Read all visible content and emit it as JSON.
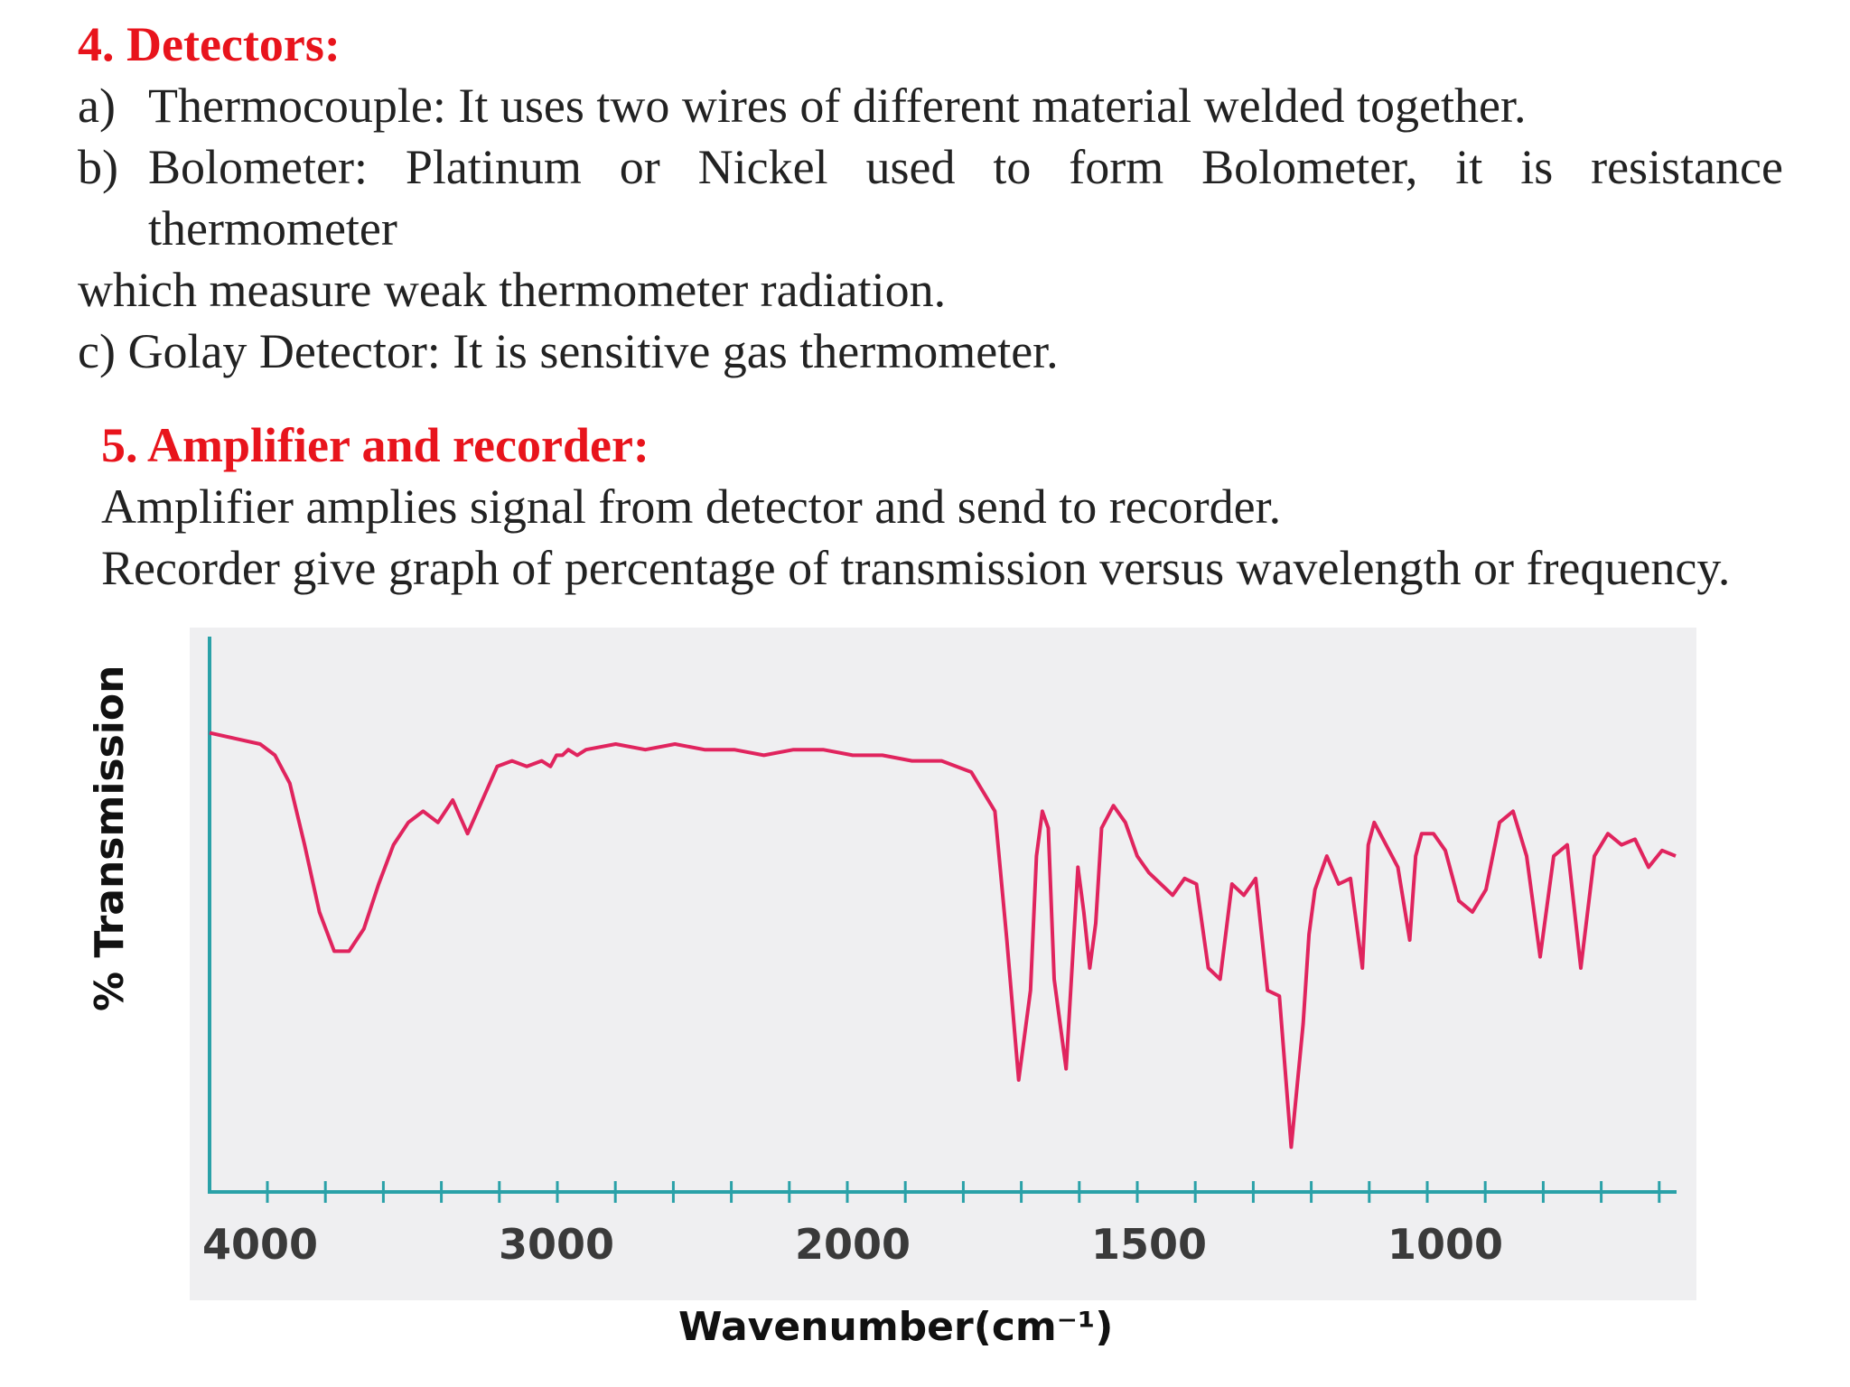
{
  "section4": {
    "heading": "4. Detectors:",
    "heading_color": "#e8141c",
    "items": [
      {
        "marker": "a)",
        "text": "Thermocouple: It uses two wires of different material welded together."
      },
      {
        "marker": "b)",
        "text_line1": "Bolometer: Platinum or Nickel used to form Bolometer, it is resistance",
        "text_line2": "thermometer"
      }
    ],
    "continuation": "which measure weak thermometer radiation.",
    "item_c": "c) Golay Detector: It is sensitive gas thermometer."
  },
  "section5": {
    "heading": "5. Amplifier and recorder:",
    "heading_color": "#e8141c",
    "line1": "Amplifier amplies signal from detector and send to recorder.",
    "line2": "Recorder give graph of percentage of transmission versus wavelength or frequency."
  },
  "chart_data": {
    "type": "line",
    "title": "",
    "xlabel": "Wavenumber(cm⁻¹)",
    "ylabel": "% Transmission",
    "x_reversed": true,
    "x_ticks": [
      4000,
      3000,
      2000,
      1500,
      1000
    ],
    "line_color": "#e0245e",
    "axis_color": "#2aa1a8",
    "series": [
      {
        "x": [
          4200,
          4100,
          4000,
          3950,
          3900,
          3850,
          3800,
          3750,
          3700,
          3650,
          3600,
          3550,
          3500,
          3450,
          3400,
          3350,
          3300,
          3250,
          3200,
          3150,
          3100,
          3050,
          3020,
          3000,
          2980,
          2960,
          2930,
          2900,
          2800,
          2700,
          2600,
          2500,
          2400,
          2300,
          2200,
          2100,
          2000,
          1950,
          1900,
          1850,
          1800,
          1760,
          1740,
          1720,
          1700,
          1690,
          1680,
          1670,
          1660,
          1650,
          1640,
          1620,
          1610,
          1600,
          1590,
          1580,
          1560,
          1540,
          1520,
          1500,
          1480,
          1460,
          1440,
          1420,
          1400,
          1380,
          1360,
          1340,
          1320,
          1300,
          1280,
          1260,
          1240,
          1230,
          1220,
          1210,
          1200,
          1180,
          1160,
          1140,
          1130,
          1120,
          1100,
          1080,
          1060,
          1050,
          1040,
          1020,
          1000,
          980,
          960,
          940,
          920,
          900,
          880,
          860,
          840,
          820,
          800,
          780,
          760,
          740,
          720,
          700,
          680,
          660
        ],
        "y": [
          82,
          81,
          80,
          78,
          73,
          62,
          50,
          43,
          43,
          47,
          55,
          62,
          66,
          68,
          66,
          70,
          64,
          70,
          76,
          77,
          76,
          77,
          76,
          78,
          78,
          79,
          78,
          79,
          80,
          79,
          80,
          79,
          79,
          78,
          79,
          79,
          78,
          78,
          77,
          77,
          75,
          68,
          45,
          20,
          36,
          60,
          68,
          65,
          38,
          30,
          22,
          58,
          50,
          40,
          48,
          65,
          69,
          66,
          60,
          57,
          55,
          53,
          56,
          55,
          40,
          38,
          55,
          53,
          56,
          36,
          35,
          8,
          30,
          46,
          54,
          57,
          60,
          55,
          56,
          40,
          62,
          66,
          62,
          58,
          45,
          60,
          64,
          64,
          61,
          52,
          50,
          54,
          66,
          68,
          60,
          42,
          60,
          62,
          40,
          60,
          64,
          62,
          63,
          58,
          61,
          60
        ]
      }
    ]
  }
}
